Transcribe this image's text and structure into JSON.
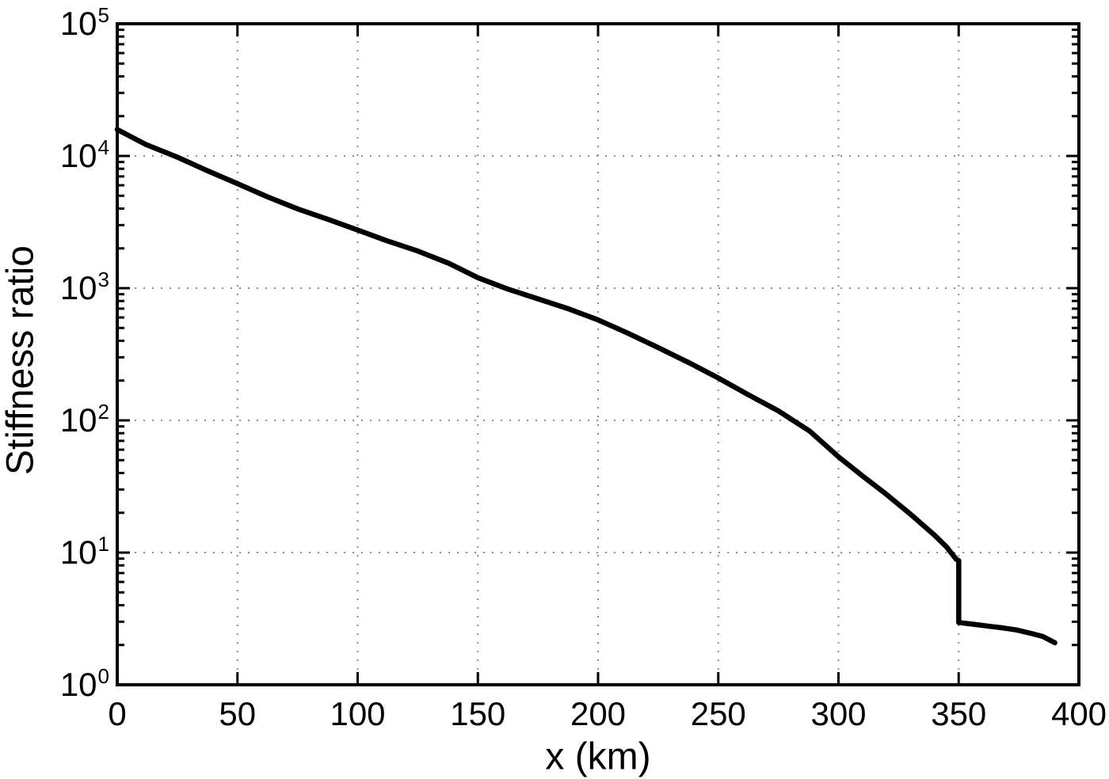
{
  "figure": {
    "background": "#ffffff"
  },
  "chart_data": {
    "type": "line",
    "title": "",
    "xlabel": "x (km)",
    "ylabel": "Stiffness ratio",
    "xlim": [
      0,
      400
    ],
    "ylog_lim": [
      0,
      5
    ],
    "x_ticks": [
      0,
      50,
      100,
      150,
      200,
      250,
      300,
      350,
      400
    ],
    "y_tick_base": "10",
    "y_tick_exponents": [
      0,
      1,
      2,
      3,
      4,
      5
    ],
    "y_scale": "log",
    "grid": "dotted-major",
    "legend": "none",
    "axis_color": "#000000",
    "grid_color": "#8c8c8c",
    "series": [
      {
        "name": "stiffness-ratio-curve",
        "color": "#000000",
        "width": 6.5,
        "x": [
          0,
          12,
          25,
          37,
          50,
          62,
          75,
          88,
          100,
          112,
          125,
          138,
          150,
          162,
          175,
          188,
          200,
          212,
          225,
          238,
          250,
          262,
          275,
          288,
          300,
          310,
          320,
          330,
          340,
          345,
          349,
          350,
          350,
          356,
          362,
          368,
          374,
          380,
          385,
          390
        ],
        "y": [
          15850,
          12200,
          9800,
          7800,
          6170,
          4950,
          3980,
          3300,
          2750,
          2290,
          1910,
          1540,
          1200,
          990,
          830,
          695,
          575,
          460,
          355,
          272,
          209,
          158,
          118,
          83,
          53,
          38,
          27.5,
          19.5,
          13.5,
          11,
          8.9,
          8.7,
          2.96,
          2.87,
          2.78,
          2.7,
          2.6,
          2.45,
          2.32,
          2.08
        ]
      }
    ],
    "notable_features": {
      "vertical_drop_at_x": 350,
      "drop_from_value": 8.7,
      "drop_to_value": 2.96,
      "curve_start_value": 15850,
      "curve_end_x": 390,
      "curve_end_value": 2.08
    }
  }
}
